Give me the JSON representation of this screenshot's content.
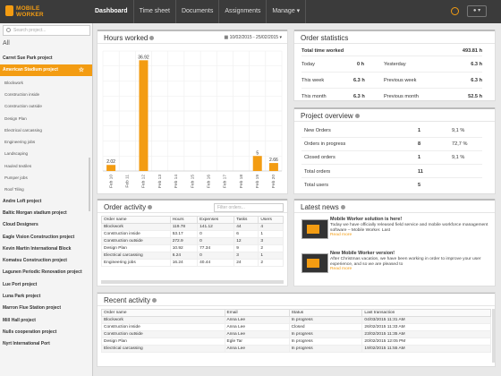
{
  "app": {
    "logo_line1": "MOBILE",
    "logo_line2": "WORKER"
  },
  "nav": {
    "items": [
      "Dashboard",
      "Time sheet",
      "Documents",
      "Assignments",
      "Manage ▾"
    ]
  },
  "user_menu": "▾",
  "sidebar": {
    "search_placeholder": "Search project...",
    "all_label": "All",
    "items": [
      {
        "label": "Carret Sue Park project",
        "sub": false
      },
      {
        "label": "American Stadium project",
        "sub": false,
        "selected": true
      },
      {
        "label": "Blockwork",
        "sub": true
      },
      {
        "label": "Construction inside",
        "sub": true
      },
      {
        "label": "Construction outside",
        "sub": true
      },
      {
        "label": "Design Plan",
        "sub": true
      },
      {
        "label": "Electrical carcassing",
        "sub": true
      },
      {
        "label": "Engineering jobs",
        "sub": true
      },
      {
        "label": "Landscaping",
        "sub": true
      },
      {
        "label": "Hauled textiles",
        "sub": true
      },
      {
        "label": "Pumper jobs",
        "sub": true
      },
      {
        "label": "Roof Tiling",
        "sub": true
      },
      {
        "label": "Andre Loft project",
        "sub": false
      },
      {
        "label": "Baltic Morgan stadium project",
        "sub": false
      },
      {
        "label": "Cloud Designers",
        "sub": false
      },
      {
        "label": "Eagle Vision Construction project",
        "sub": false
      },
      {
        "label": "Kevin Martin International Block",
        "sub": false
      },
      {
        "label": "Komatsu Construction project",
        "sub": false
      },
      {
        "label": "Lagunen Periodic Renovation project",
        "sub": false
      },
      {
        "label": "Lue Port project",
        "sub": false
      },
      {
        "label": "Luna Park project",
        "sub": false
      },
      {
        "label": "Marron Flue Station project",
        "sub": false
      },
      {
        "label": "Mill Hall project",
        "sub": false
      },
      {
        "label": "Nulls cooperation project",
        "sub": false
      },
      {
        "label": "Nyrt International Port",
        "sub": false
      }
    ]
  },
  "hours_worked": {
    "title": "Hours worked",
    "date_range": "10/02/2015 - 25/02/2015",
    "chart_data": {
      "type": "bar",
      "categories": [
        "Feb 10",
        "Feb 11",
        "Feb 12",
        "Feb 13",
        "Feb 14",
        "Feb 15",
        "Feb 16",
        "Feb 17",
        "Feb 18",
        "Feb 19",
        "Feb 20"
      ],
      "values": [
        2.02,
        0,
        36.92,
        0,
        0,
        0,
        0,
        0,
        0,
        5,
        2.66
      ],
      "value_labels": [
        "2.02",
        "",
        "36.92",
        "",
        "",
        "",
        "",
        "",
        "",
        "5",
        "2.66"
      ],
      "ylim": [
        0,
        40
      ],
      "color": "#f39c12"
    }
  },
  "order_stats": {
    "title": "Order statistics",
    "total_label": "Total time worked",
    "total_value": "493.81 h",
    "rows": [
      {
        "l1": "Today",
        "v1": "0 h",
        "l2": "Yesterday",
        "v2": "6.3 h"
      },
      {
        "l1": "This week",
        "v1": "6.3 h",
        "l2": "Previous week",
        "v2": "6.3 h"
      },
      {
        "l1": "This month",
        "v1": "6.3 h",
        "l2": "Previous month",
        "v2": "52.5 h"
      }
    ]
  },
  "overview": {
    "title": "Project overview",
    "rows": [
      {
        "label": "New Orders",
        "count": "1",
        "pct": "9,1 %"
      },
      {
        "label": "Orders in progress",
        "count": "8",
        "pct": "72,7 %"
      },
      {
        "label": "Closed orders",
        "count": "1",
        "pct": "9,1 %"
      },
      {
        "label": "Total orders",
        "count": "11",
        "pct": ""
      },
      {
        "label": "Total users",
        "count": "5",
        "pct": ""
      }
    ]
  },
  "order_activity": {
    "title": "Order activity",
    "filter_placeholder": "Filter orders...",
    "columns": [
      "Order name",
      "Hours",
      "Expenses",
      "Tasks",
      "Users"
    ],
    "rows": [
      [
        "Blockwork",
        "119.78",
        "141.12",
        "44",
        "4"
      ],
      [
        "Construction inside",
        "53.17",
        "0",
        "6",
        "1"
      ],
      [
        "Construction outside",
        "272.9",
        "0",
        "12",
        "3"
      ],
      [
        "Design Plan",
        "10.92",
        "77.34",
        "9",
        "2"
      ],
      [
        "Electrical carcassing",
        "6.24",
        "0",
        "3",
        "1"
      ],
      [
        "Engineering jobs",
        "16.24",
        "40.44",
        "24",
        "2"
      ]
    ]
  },
  "news": {
    "title": "Latest news",
    "items": [
      {
        "title": "Mobile Worker solution is here!",
        "text": "Today we have officially released field service and mobile workforce management software – Mobile Worker. Last",
        "more": "Read more"
      },
      {
        "title": "New Mobile Worker version!",
        "text": "After Christmas vacation, we have been working in order to improve your user experience, and so we are pleased to",
        "more": "Read more"
      }
    ]
  },
  "recent": {
    "title": "Recent activity",
    "columns": [
      "Order name",
      "Email",
      "Status",
      "Last transaction"
    ],
    "rows": [
      [
        "Blockwork",
        "Anna Lee",
        "In progress",
        "04/03/2015 11:31 AM"
      ],
      [
        "Construction inside",
        "Anna Lee",
        "Closed",
        "26/02/2015 11:33 AM"
      ],
      [
        "Construction outside",
        "Anna Lee",
        "In progress",
        "23/02/2015 11:35 AM"
      ],
      [
        "Design Plan",
        "Egle Tar",
        "In progress",
        "20/02/2015 12:05 PM"
      ],
      [
        "Electrical carcassing",
        "Anna Lee",
        "In progress",
        "19/02/2015 11:55 AM"
      ]
    ]
  }
}
